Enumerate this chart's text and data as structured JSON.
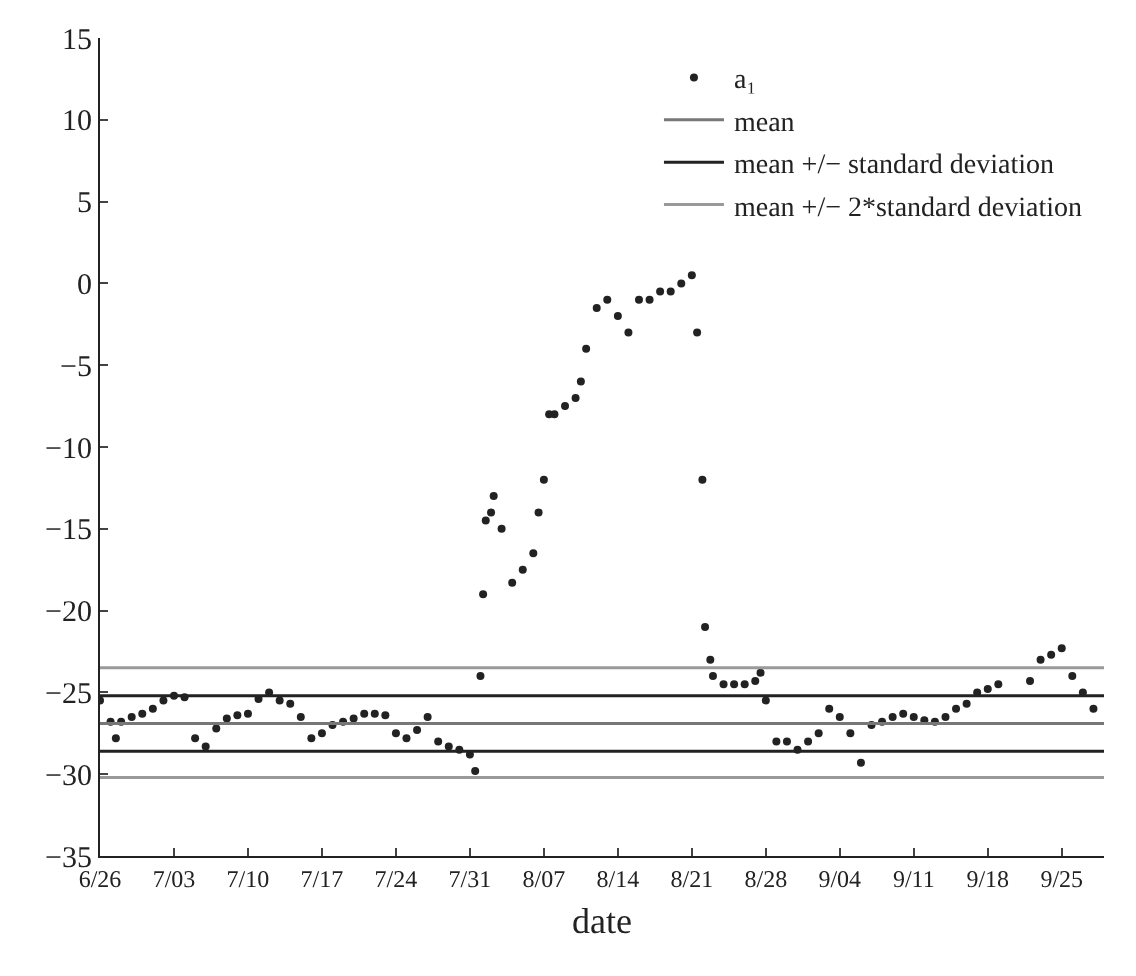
{
  "chart_data": {
    "type": "scatter",
    "xlabel": "date",
    "legend": "top right",
    "xlim": [
      "--06-26",
      "--09-29"
    ],
    "ylim": [
      -35,
      15
    ],
    "yticks": [
      -35,
      -30,
      -25,
      -20,
      -15,
      -10,
      -5,
      0,
      5,
      10,
      15
    ],
    "xticks": [
      {
        "value": "--06-26",
        "label": "6/26"
      },
      {
        "value": "--07-03",
        "label": "7/03"
      },
      {
        "value": "--07-10",
        "label": "7/10"
      },
      {
        "value": "--07-17",
        "label": "7/17"
      },
      {
        "value": "--07-24",
        "label": "7/24"
      },
      {
        "value": "--07-31",
        "label": "7/31"
      },
      {
        "value": "--08-07",
        "label": "8/07"
      },
      {
        "value": "--08-14",
        "label": "8/14"
      },
      {
        "value": "--08-21",
        "label": "8/21"
      },
      {
        "value": "--08-28",
        "label": "8/28"
      },
      {
        "value": "--09-04",
        "label": "9/04"
      },
      {
        "value": "--09-11",
        "label": "9/11"
      },
      {
        "value": "--09-18",
        "label": "9/18"
      },
      {
        "value": "--09-25",
        "label": "9/25"
      }
    ],
    "series": [
      {
        "name": "a₁",
        "marker": "circle",
        "color": "#222222",
        "x": [
          "--06-26",
          "--06-27",
          "--06-27T12:00",
          "--06-28",
          "--06-29",
          "--06-30",
          "--07-01",
          "--07-02",
          "--07-03",
          "--07-04",
          "--07-05",
          "--07-06",
          "--07-07",
          "--07-08",
          "--07-09",
          "--07-10",
          "--07-11",
          "--07-12",
          "--07-13",
          "--07-14",
          "--07-15",
          "--07-16",
          "--07-17",
          "--07-18",
          "--07-19",
          "--07-20",
          "--07-21",
          "--07-22",
          "--07-23",
          "--07-24",
          "--07-25",
          "--07-26",
          "--07-27",
          "--07-28",
          "--07-29",
          "--07-30",
          "--07-31",
          "--07-31T12:00",
          "--08-01",
          "--08-01T06:00",
          "--08-01T12:00",
          "--08-02",
          "--08-02T06:00",
          "--08-03",
          "--08-04",
          "--08-05",
          "--08-06",
          "--08-06T12:00",
          "--08-07",
          "--08-07T12:00",
          "--08-08",
          "--08-09",
          "--08-10",
          "--08-10T12:00",
          "--08-11",
          "--08-12",
          "--08-13",
          "--08-14",
          "--08-15",
          "--08-16",
          "--08-17",
          "--08-18",
          "--08-19",
          "--08-20",
          "--08-21",
          "--08-21T12:00",
          "--08-22",
          "--08-22T06:00",
          "--08-22T18:00",
          "--08-23",
          "--08-24",
          "--08-25",
          "--08-26",
          "--08-27",
          "--08-27T12:00",
          "--08-28",
          "--08-29",
          "--08-30",
          "--08-31",
          "--09-01",
          "--09-02",
          "--09-03",
          "--09-04",
          "--09-05",
          "--09-06",
          "--09-07",
          "--09-08",
          "--09-09",
          "--09-10",
          "--09-11",
          "--09-12",
          "--09-13",
          "--09-14",
          "--09-15",
          "--09-16",
          "--09-17",
          "--09-18",
          "--09-19",
          "--09-22",
          "--09-23",
          "--09-24",
          "--09-25",
          "--09-26",
          "--09-27",
          "--09-28"
        ],
        "values": [
          -25.5,
          -26.8,
          -27.8,
          -26.8,
          -26.5,
          -26.3,
          -26,
          -25.5,
          -25.2,
          -25.3,
          -27.8,
          -28.3,
          -27.2,
          -26.6,
          -26.4,
          -26.3,
          -25.4,
          -25,
          -25.5,
          -25.7,
          -26.5,
          -27.8,
          -27.5,
          -27,
          -26.8,
          -26.6,
          -26.3,
          -26.3,
          -26.4,
          -27.5,
          -27.8,
          -27.3,
          -26.5,
          -28,
          -28.3,
          -28.5,
          -28.8,
          -29.8,
          -24,
          -19,
          -14.5,
          -14,
          -13,
          -15,
          -18.3,
          -17.5,
          -16.5,
          -14,
          -12,
          -8,
          -8,
          -7.5,
          -7,
          -6,
          -4,
          -1.5,
          -1,
          -2,
          -3,
          -1,
          -1,
          -0.5,
          -0.5,
          0,
          0.5,
          -3,
          -12,
          -21,
          -23,
          -24,
          -24.5,
          -24.5,
          -24.5,
          -24.3,
          -23.8,
          -25.5,
          -28,
          -28,
          -28.5,
          -28,
          -27.5,
          -26,
          -26.5,
          -27.5,
          -29.3,
          -27,
          -26.8,
          -26.5,
          -26.3,
          -26.5,
          -26.7,
          -26.8,
          -26.5,
          -26,
          -25.7,
          -25,
          -24.8,
          -24.5,
          -24.3,
          -23,
          -22.7,
          -22.3,
          -24,
          -25,
          -26
        ]
      },
      {
        "name": "mean",
        "type": "line",
        "marker": "none",
        "color": "#777777",
        "x": [
          "--06-26",
          "--09-29"
        ],
        "values": [
          -26.9,
          -26.9
        ]
      },
      {
        "name": "mean +/− standard deviation",
        "type": "line",
        "marker": "none",
        "color": "#222222",
        "x": [
          "--06-26",
          "--09-29"
        ],
        "values": [
          -25.2,
          -25.2
        ]
      },
      {
        "type": "line",
        "marker": "none",
        "color": "#222222",
        "x": [
          "--06-26",
          "--09-29"
        ],
        "values": [
          -28.6,
          -28.6
        ]
      },
      {
        "name": "mean +/− 2*standard deviation",
        "type": "line",
        "marker": "none",
        "color": "#999999",
        "x": [
          "--06-26",
          "--09-29"
        ],
        "values": [
          -23.5,
          -23.5
        ]
      },
      {
        "type": "line",
        "marker": "none",
        "color": "#999999",
        "x": [
          "--06-26",
          "--09-29"
        ],
        "values": [
          -30.2,
          -30.2
        ]
      }
    ]
  }
}
